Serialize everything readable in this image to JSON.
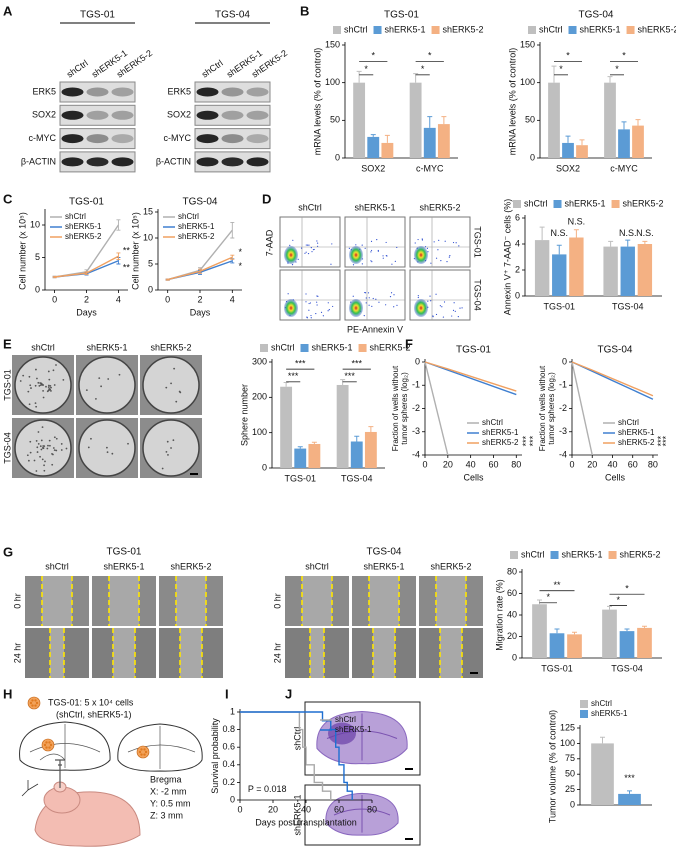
{
  "figure": {
    "panel_letters": [
      "A",
      "B",
      "C",
      "D",
      "E",
      "F",
      "G",
      "H",
      "I",
      "J"
    ],
    "lanes": [
      "shCtrl",
      "shERK5-1",
      "shERK5-2"
    ],
    "blot": {
      "groups": [
        "TGS-01",
        "TGS-04"
      ],
      "rows": [
        "ERK5",
        "SOX2",
        "c-MYC",
        "β-ACTIN"
      ]
    },
    "flow": {
      "rows": [
        "TGS-01",
        "TGS-04"
      ],
      "ylabel": "7-AAD",
      "xlabel": "PE-Annexin V"
    },
    "sphere": {
      "rows": [
        "TGS-01",
        "TGS-04"
      ]
    },
    "wound": {
      "groups": [
        "TGS-01",
        "TGS-04"
      ],
      "times": [
        "0 hr",
        "24 hr"
      ]
    },
    "model": {
      "cells": "TGS-01: 5 x 10⁴ cells",
      "groups": "(shCtrl, shERK5-1)",
      "bregma": "Bregma",
      "coords": [
        "X: -2 mm",
        "Y: 0.5 mm",
        "Z: 3 mm"
      ]
    },
    "histology": {
      "rows": [
        "shCtrl",
        "shERK5-1"
      ]
    }
  },
  "chart_data": [
    {
      "type": "bar",
      "title": "TGS-01",
      "ylabel": "mRNA levels (% of control)",
      "categories": [
        "SOX2",
        "c-MYC"
      ],
      "series": [
        {
          "name": "shCtrl",
          "color": "#bfbfbf",
          "values": [
            100,
            100
          ],
          "errors": [
            15,
            12
          ]
        },
        {
          "name": "shERK5-1",
          "color": "#5b9bd5",
          "values": [
            28,
            40
          ],
          "errors": [
            3,
            15
          ]
        },
        {
          "name": "shERK5-2",
          "color": "#f4b183",
          "values": [
            20,
            45
          ],
          "errors": [
            10,
            10
          ]
        }
      ],
      "ylim": [
        0,
        150
      ],
      "yticks": [
        0,
        50,
        100,
        150
      ],
      "legend": "top",
      "annotations": [
        "*",
        "*",
        "*",
        "*"
      ]
    },
    {
      "type": "bar",
      "title": "TGS-04",
      "ylabel": "mRNA levels (% of control)",
      "categories": [
        "SOX2",
        "c-MYC"
      ],
      "series": [
        {
          "name": "shCtrl",
          "color": "#bfbfbf",
          "values": [
            100,
            100
          ],
          "errors": [
            22,
            8
          ]
        },
        {
          "name": "shERK5-1",
          "color": "#5b9bd5",
          "values": [
            20,
            38
          ],
          "errors": [
            9,
            10
          ]
        },
        {
          "name": "shERK5-2",
          "color": "#f4b183",
          "values": [
            17,
            43
          ],
          "errors": [
            7,
            8
          ]
        }
      ],
      "ylim": [
        0,
        150
      ],
      "yticks": [
        0,
        50,
        100,
        150
      ],
      "legend": "top",
      "annotations": [
        "*",
        "*",
        "*",
        "*"
      ]
    },
    {
      "type": "line",
      "title": "TGS-01",
      "xlabel": "Days",
      "ylabel": "Cell number (x 10⁵)",
      "x": [
        0,
        2,
        4
      ],
      "series": [
        {
          "name": "shCtrl",
          "color": "#b0b0b0",
          "values": [
            2,
            2.8,
            10
          ],
          "errors": [
            0.1,
            0.3,
            0.8
          ]
        },
        {
          "name": "shERK5-1",
          "color": "#3f7fd0",
          "values": [
            2,
            2.5,
            4.5
          ],
          "errors": [
            0.1,
            0.2,
            0.5
          ]
        },
        {
          "name": "shERK5-2",
          "color": "#f0a060",
          "values": [
            2,
            2.6,
            5.2
          ],
          "errors": [
            0.1,
            0.2,
            0.5
          ]
        }
      ],
      "xlim": [
        -0.6,
        4.6
      ],
      "xticks": [
        0,
        2,
        4
      ],
      "ylim": [
        0,
        12
      ],
      "yticks": [
        0,
        5,
        10
      ],
      "legend": "upper left",
      "annotations": [
        "**",
        "**"
      ]
    },
    {
      "type": "line",
      "title": "TGS-04",
      "xlabel": "Days",
      "ylabel": "Cell number (x 10⁵)",
      "x": [
        0,
        2,
        4
      ],
      "series": [
        {
          "name": "shCtrl",
          "color": "#b0b0b0",
          "values": [
            2,
            3.8,
            11.5
          ],
          "errors": [
            0.1,
            0.5,
            1.5
          ]
        },
        {
          "name": "shERK5-1",
          "color": "#3f7fd0",
          "values": [
            2,
            3.4,
            5.6
          ],
          "errors": [
            0.1,
            0.4,
            0.4
          ]
        },
        {
          "name": "shERK5-2",
          "color": "#f0a060",
          "values": [
            2,
            3.6,
            6.3
          ],
          "errors": [
            0.1,
            0.4,
            0.4
          ]
        }
      ],
      "xlim": [
        -0.6,
        4.6
      ],
      "xticks": [
        0,
        2,
        4
      ],
      "ylim": [
        0,
        15
      ],
      "yticks": [
        0,
        5,
        10,
        15
      ],
      "legend": "upper left",
      "annotations": [
        "*",
        "*"
      ]
    },
    {
      "type": "bar",
      "ylabel": "Annexin V⁺ 7-AAD⁻ cells (%)",
      "categories": [
        "TGS-01",
        "TGS-04"
      ],
      "series": [
        {
          "name": "shCtrl",
          "color": "#bfbfbf",
          "values": [
            4.3,
            3.8
          ],
          "errors": [
            1,
            0.4
          ]
        },
        {
          "name": "shERK5-1",
          "color": "#5b9bd5",
          "values": [
            3.2,
            3.8
          ],
          "errors": [
            0.7,
            0.5
          ]
        },
        {
          "name": "shERK5-2",
          "color": "#f4b183",
          "values": [
            4.5,
            4.0
          ],
          "errors": [
            0.6,
            0.2
          ]
        }
      ],
      "ylim": [
        0,
        6
      ],
      "yticks": [
        0,
        2,
        4,
        6
      ],
      "legend": "top",
      "annotations": [
        "N.S.",
        "N.S.",
        "N.S.",
        "N.S."
      ]
    },
    {
      "type": "bar",
      "ylabel": "Sphere number",
      "categories": [
        "TGS-01",
        "TGS-04"
      ],
      "series": [
        {
          "name": "shCtrl",
          "color": "#bfbfbf",
          "values": [
            230,
            235
          ],
          "errors": [
            12,
            15
          ]
        },
        {
          "name": "shERK5-1",
          "color": "#5b9bd5",
          "values": [
            55,
            75
          ],
          "errors": [
            5,
            15
          ]
        },
        {
          "name": "shERK5-2",
          "color": "#f4b183",
          "values": [
            68,
            102
          ],
          "errors": [
            5,
            15
          ]
        }
      ],
      "ylim": [
        0,
        300
      ],
      "yticks": [
        0,
        100,
        200,
        300
      ],
      "legend": "top",
      "annotations": [
        "***",
        "***",
        "***",
        "***"
      ]
    },
    {
      "type": "line",
      "title": "TGS-01",
      "xlabel": "Cells",
      "ylabel": [
        "Fraction of wells without",
        "tumor spheres (log₂)"
      ],
      "x": [
        0,
        20,
        80
      ],
      "series": [
        {
          "name": "shCtrl",
          "color": "#b0b0b0",
          "values": [
            0,
            -4,
            null
          ]
        },
        {
          "name": "shERK5-1",
          "color": "#3f7fd0",
          "values": [
            0,
            -0.35,
            -1.4
          ]
        },
        {
          "name": "shERK5-2",
          "color": "#f0a060",
          "values": [
            0,
            -0.3,
            -1.25
          ]
        }
      ],
      "xlim": [
        0,
        85
      ],
      "xticks": [
        0,
        20,
        40,
        60,
        80
      ],
      "ylim": [
        -4,
        0
      ],
      "yticks": [
        -4,
        -3,
        -2,
        -1,
        0
      ],
      "legend": "lower right",
      "annotations": [
        "***",
        "***"
      ]
    },
    {
      "type": "line",
      "title": "TGS-04",
      "xlabel": "Cells",
      "ylabel": [
        "Fraction of wells without",
        "tumor spheres (log₂)"
      ],
      "x": [
        0,
        20,
        80
      ],
      "series": [
        {
          "name": "shCtrl",
          "color": "#b0b0b0",
          "values": [
            0,
            -4,
            null
          ]
        },
        {
          "name": "shERK5-1",
          "color": "#3f7fd0",
          "values": [
            0,
            -0.4,
            -1.6
          ]
        },
        {
          "name": "shERK5-2",
          "color": "#f0a060",
          "values": [
            0,
            -0.35,
            -1.45
          ]
        }
      ],
      "xlim": [
        0,
        85
      ],
      "xticks": [
        0,
        20,
        40,
        60,
        80
      ],
      "ylim": [
        -4,
        0
      ],
      "yticks": [
        -4,
        -3,
        -2,
        -1,
        0
      ],
      "legend": "lower right",
      "annotations": [
        "***",
        "***"
      ]
    },
    {
      "type": "bar",
      "ylabel": "Migration rate (%)",
      "categories": [
        "TGS-01",
        "TGS-04"
      ],
      "series": [
        {
          "name": "shCtrl",
          "color": "#bfbfbf",
          "values": [
            50,
            45
          ],
          "errors": [
            4,
            3
          ]
        },
        {
          "name": "shERK5-1",
          "color": "#5b9bd5",
          "values": [
            23,
            25
          ],
          "errors": [
            4,
            2
          ]
        },
        {
          "name": "shERK5-2",
          "color": "#f4b183",
          "values": [
            22,
            28
          ],
          "errors": [
            2,
            1.5
          ]
        }
      ],
      "ylim": [
        0,
        80
      ],
      "yticks": [
        0,
        20,
        40,
        60,
        80
      ],
      "legend": "top",
      "annotations": [
        "*",
        "**",
        "*",
        "*"
      ]
    },
    {
      "type": "step",
      "xlabel": "Days post transplantation",
      "ylabel": "Survival probability",
      "x": [
        0,
        36,
        38,
        40,
        45,
        50,
        55,
        58,
        60,
        63,
        65,
        68
      ],
      "series": [
        {
          "name": "shCtrl",
          "color": "#aaaaaa",
          "values": [
            1,
            0.8,
            0.6,
            0.4,
            0.2,
            0.1,
            0,
            null,
            null,
            null,
            null,
            null
          ]
        },
        {
          "name": "shERK5-1",
          "color": "#1f6fd1",
          "values": [
            1,
            1,
            1,
            1,
            1,
            0.9,
            0.8,
            0.6,
            0.4,
            0.2,
            0.1,
            0
          ]
        }
      ],
      "xlim": [
        0,
        80
      ],
      "xticks": [
        0,
        20,
        40,
        60,
        80
      ],
      "ylim": [
        0,
        1
      ],
      "yticks": [
        0,
        0.2,
        0.4,
        0.6,
        0.8,
        1
      ],
      "legend": "upper right",
      "annotations": [
        "P = 0.018"
      ]
    },
    {
      "type": "bar",
      "ylabel": "Tumor volume (% of control)",
      "categories": [
        null
      ],
      "series": [
        {
          "name": "shCtrl",
          "color": "#bfbfbf",
          "values": [
            100
          ],
          "errors": [
            10
          ]
        },
        {
          "name": "shERK5-1",
          "color": "#5b9bd5",
          "values": [
            18
          ],
          "errors": [
            5
          ]
        }
      ],
      "ylim": [
        0,
        125
      ],
      "yticks": [
        0,
        25,
        50,
        75,
        100,
        125
      ],
      "legend": "top left",
      "annotations": [
        "***"
      ]
    }
  ]
}
